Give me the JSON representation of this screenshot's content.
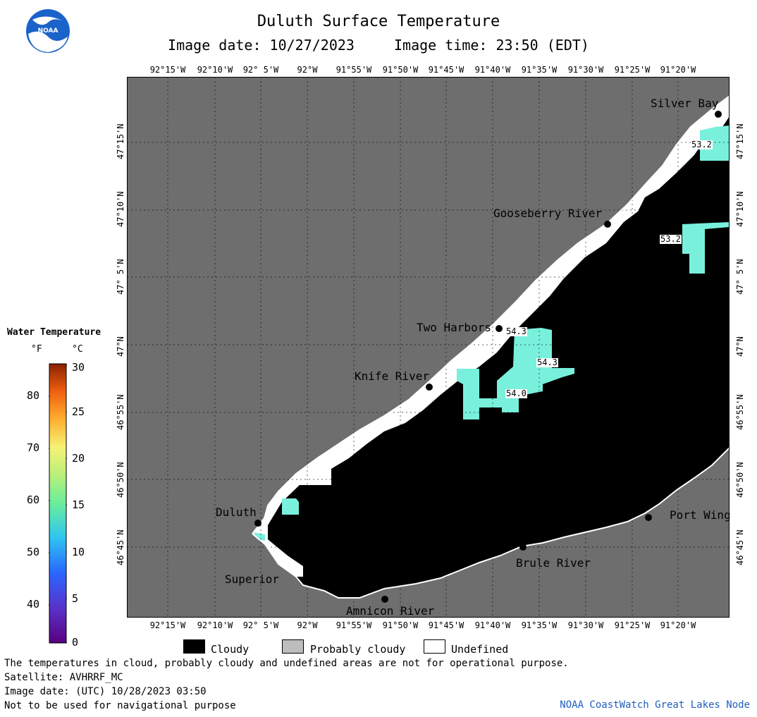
{
  "header": {
    "title": "Duluth Surface Temperature",
    "image_date": "Image date: 10/27/2023",
    "image_time": "Image time: 23:50 (EDT)"
  },
  "logo": {
    "text": "NOAA"
  },
  "axes": {
    "lon_labels": [
      "92°15'W",
      "92°10'W",
      "92° 5'W",
      "92°W",
      "91°55'W",
      "91°50'W",
      "91°45'W",
      "91°40'W",
      "91°35'W",
      "91°30'W",
      "91°25'W",
      "91°20'W"
    ],
    "lat_labels": [
      "47°15'N",
      "47°10'N",
      "47° 5'N",
      "47°N",
      "46°55'N",
      "46°50'N",
      "46°45'N"
    ]
  },
  "places": {
    "silver_bay": "Silver Bay",
    "gooseberry_river": "Gooseberry River",
    "two_harbors": "Two Harbors",
    "knife_river": "Knife River",
    "duluth": "Duluth",
    "superior": "Superior",
    "amnicon_river": "Amnicon River",
    "brule_river": "Brule River",
    "port_wing": "Port Wing"
  },
  "temperature_labels": {
    "t1": "53.2",
    "t2": "53.2",
    "t3": "54.3",
    "t4": "54.3",
    "t5": "54.0"
  },
  "legend": {
    "title": "Water Temperature",
    "unit_f": "°F",
    "unit_c": "°C",
    "f_ticks": [
      "80",
      "70",
      "60",
      "50",
      "40"
    ],
    "c_ticks": [
      "30",
      "25",
      "20",
      "15",
      "10",
      "5",
      "0"
    ]
  },
  "key": {
    "cloudy": "Cloudy",
    "probably_cloudy": "Probably cloudy",
    "undefined": "Undefined"
  },
  "footer": {
    "disclaimer": "The temperatures in cloud, probably cloudy and undefined areas are not for operational purpose.",
    "satellite": "Satellite: AVHRRF_MC",
    "utc_date": "Image date: (UTC) 10/28/2023  03:50",
    "nav_warning": "Not to be used for navigational purpose",
    "credit": "NOAA CoastWatch Great Lakes Node"
  },
  "colors": {
    "land": "#6e6e6e",
    "cloud": "#000000",
    "undefined": "#ffffff",
    "water_cyan": "#78f0dc",
    "credit_blue": "#1f5fbf"
  }
}
